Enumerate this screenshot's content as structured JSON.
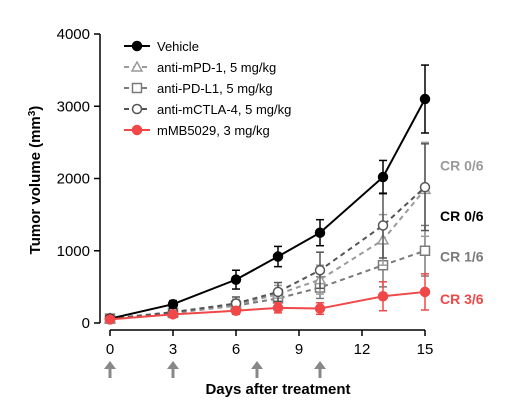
{
  "chart_data": {
    "type": "line",
    "title": "",
    "xlabel": "Days after treatment",
    "ylabel": "Tumor volume (mm",
    "ylabel_sup": "3",
    "ylabel_close": ")",
    "xlim": [
      0,
      15
    ],
    "ylim": [
      0,
      4000
    ],
    "x_ticks": [
      0,
      3,
      6,
      9,
      12,
      15
    ],
    "y_ticks": [
      0,
      1000,
      2000,
      3000,
      4000
    ],
    "y_tick_labels": [
      "0",
      "1000",
      "2000",
      "3000",
      "4000"
    ],
    "treatment_days": [
      0,
      3,
      7,
      10
    ],
    "legend_position": "top-left",
    "grid": false,
    "series": [
      {
        "name": "Vehicle",
        "color": "#000000",
        "line": "solid",
        "marker": "circle-filled",
        "x": [
          0,
          3,
          6,
          8,
          10,
          13,
          15
        ],
        "y": [
          60,
          260,
          600,
          920,
          1250,
          2020,
          3100
        ],
        "err": [
          30,
          50,
          130,
          140,
          180,
          230,
          470
        ]
      },
      {
        "name": "anti-mPD-1, 5 mg/kg",
        "color": "#9a9a9a",
        "line": "dashed",
        "marker": "triangle-open",
        "x": [
          0,
          3,
          6,
          8,
          10,
          13,
          15
        ],
        "y": [
          60,
          150,
          250,
          400,
          600,
          1150,
          1850
        ],
        "err": [
          30,
          40,
          80,
          120,
          200,
          350,
          650
        ]
      },
      {
        "name": "anti-PD-L1, 5 mg/kg",
        "color": "#7a7a7a",
        "line": "dashed",
        "marker": "square-open",
        "x": [
          0,
          3,
          6,
          8,
          10,
          13,
          15
        ],
        "y": [
          60,
          140,
          240,
          340,
          490,
          800,
          1000
        ],
        "err": [
          30,
          40,
          70,
          110,
          150,
          300,
          350
        ]
      },
      {
        "name": "anti-mCTLA-4, 5 mg/kg",
        "color": "#555555",
        "line": "dashed",
        "marker": "circle-open",
        "x": [
          0,
          3,
          6,
          8,
          10,
          13,
          15
        ],
        "y": [
          60,
          150,
          270,
          430,
          730,
          1350,
          1880
        ],
        "err": [
          30,
          40,
          90,
          130,
          250,
          450,
          600
        ]
      },
      {
        "name": "mMB5029, 3 mg/kg",
        "color": "#f04848",
        "line": "solid",
        "marker": "circle-filled",
        "x": [
          0,
          3,
          6,
          8,
          10,
          13,
          15
        ],
        "y": [
          50,
          120,
          170,
          210,
          200,
          370,
          430
        ],
        "err": [
          20,
          30,
          50,
          70,
          80,
          200,
          250
        ]
      }
    ],
    "annotations": [
      {
        "text": "CR 0/6",
        "y": 2180,
        "color": "#9a9a9a"
      },
      {
        "text": "CR 0/6",
        "y": 1480,
        "color": "#000000"
      },
      {
        "text": "CR 1/6",
        "y": 920,
        "color": "#7a7a7a"
      },
      {
        "text": "CR 3/6",
        "y": 330,
        "color": "#f04848"
      }
    ]
  }
}
